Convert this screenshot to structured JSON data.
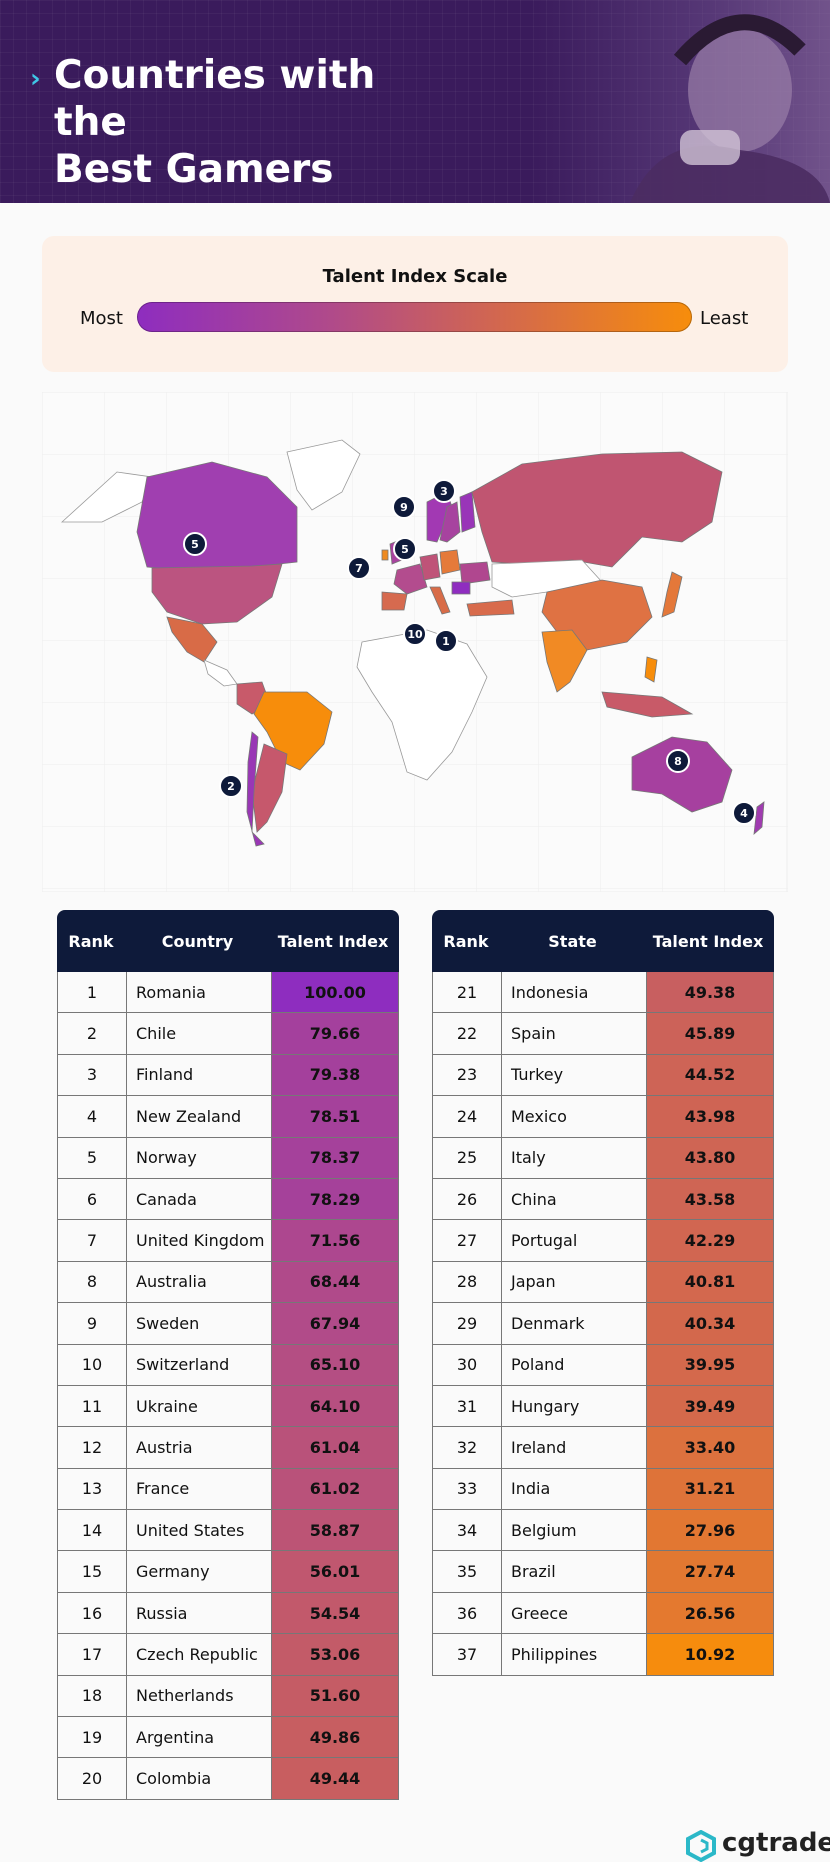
{
  "header": {
    "title_line1": "Countries with the",
    "title_line2": "Best Gamers"
  },
  "scale": {
    "title": "Talent Index Scale",
    "most": "Most",
    "least": "Least",
    "color_most": "#8e2dbf",
    "color_least": "#f78d0b"
  },
  "map": {
    "markers": [
      "5",
      "9",
      "3",
      "5",
      "7",
      "10",
      "1",
      "2",
      "8",
      "4"
    ]
  },
  "chart_data": {
    "type": "table",
    "tables": [
      {
        "columns": [
          "Rank",
          "Country",
          "Talent Index"
        ],
        "rows": [
          [
            "1",
            "Romania",
            "100.00"
          ],
          [
            "2",
            "Chile",
            "79.66"
          ],
          [
            "3",
            "Finland",
            "79.38"
          ],
          [
            "4",
            "New Zealand",
            "78.51"
          ],
          [
            "5",
            "Norway",
            "78.37"
          ],
          [
            "6",
            "Canada",
            "78.29"
          ],
          [
            "7",
            "United Kingdom",
            "71.56"
          ],
          [
            "8",
            "Australia",
            "68.44"
          ],
          [
            "9",
            "Sweden",
            "67.94"
          ],
          [
            "10",
            "Switzerland",
            "65.10"
          ],
          [
            "11",
            "Ukraine",
            "64.10"
          ],
          [
            "12",
            "Austria",
            "61.04"
          ],
          [
            "13",
            "France",
            "61.02"
          ],
          [
            "14",
            "United States",
            "58.87"
          ],
          [
            "15",
            "Germany",
            "56.01"
          ],
          [
            "16",
            "Russia",
            "54.54"
          ],
          [
            "17",
            "Czech Republic",
            "53.06"
          ],
          [
            "18",
            "Netherlands",
            "51.60"
          ],
          [
            "19",
            "Argentina",
            "49.86"
          ],
          [
            "20",
            "Colombia",
            "49.44"
          ]
        ]
      },
      {
        "columns": [
          "Rank",
          "State",
          "Talent Index"
        ],
        "rows": [
          [
            "21",
            "Indonesia",
            "49.38"
          ],
          [
            "22",
            "Spain",
            "45.89"
          ],
          [
            "23",
            "Turkey",
            "44.52"
          ],
          [
            "24",
            "Mexico",
            "43.98"
          ],
          [
            "25",
            "Italy",
            "43.80"
          ],
          [
            "26",
            "China",
            "43.58"
          ],
          [
            "27",
            "Portugal",
            "42.29"
          ],
          [
            "28",
            "Japan",
            "40.81"
          ],
          [
            "29",
            "Denmark",
            "40.34"
          ],
          [
            "30",
            "Poland",
            "39.95"
          ],
          [
            "31",
            "Hungary",
            "39.49"
          ],
          [
            "32",
            "Ireland",
            "33.40"
          ],
          [
            "33",
            "India",
            "31.21"
          ],
          [
            "34",
            "Belgium",
            "27.96"
          ],
          [
            "35",
            "Brazil",
            "27.74"
          ],
          [
            "36",
            "Greece",
            "26.56"
          ],
          [
            "37",
            "Philippines",
            "10.92"
          ]
        ]
      }
    ]
  },
  "footer": {
    "brand": "cgtrader"
  }
}
